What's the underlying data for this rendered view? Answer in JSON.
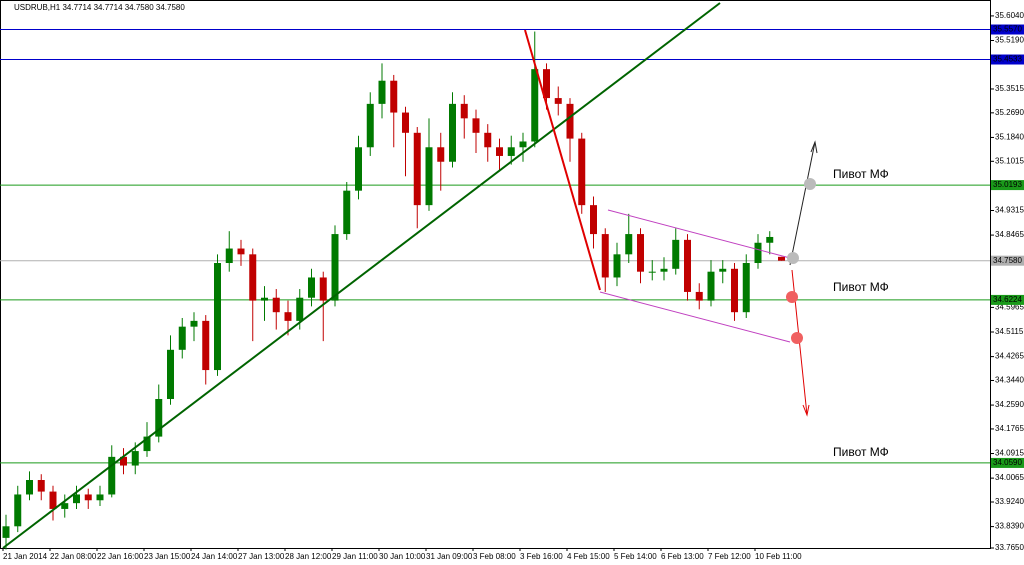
{
  "chart_data": {
    "type": "candlestick",
    "title": "USDRUB,H1  34.7714 34.7714 34.7580 34.7580",
    "categories": [
      "21 Jan 2014",
      null,
      null,
      null,
      "22 Jan 08:00",
      null,
      null,
      null,
      "22 Jan 16:00",
      null,
      null,
      null,
      "23 Jan 15:00",
      null,
      null,
      null,
      "24 Jan 14:00",
      null,
      null,
      null,
      "27 Jan 13:00",
      null,
      null,
      null,
      "28 Jan 12:00",
      null,
      null,
      null,
      "29 Jan 11:00",
      null,
      null,
      null,
      "30 Jan 10:00",
      null,
      null,
      null,
      "31 Jan 09:00",
      null,
      null,
      null,
      "3 Feb 08:00",
      null,
      null,
      null,
      "3 Feb 16:00",
      null,
      null,
      null,
      "4 Feb 15:00",
      null,
      null,
      null,
      "5 Feb 14:00",
      null,
      null,
      null,
      "6 Feb 13:00",
      null,
      null,
      null,
      "7 Feb 12:00",
      null,
      null,
      null,
      "10 Feb 11:00",
      null,
      null
    ],
    "open": [
      33.8,
      33.84,
      33.95,
      34.0,
      33.96,
      33.9,
      33.92,
      33.95,
      33.93,
      33.95,
      34.08,
      34.05,
      34.1,
      34.15,
      34.28,
      34.45,
      34.53,
      34.55,
      34.38,
      34.75,
      34.8,
      34.78,
      34.62,
      34.63,
      34.58,
      34.55,
      34.63,
      34.7,
      34.62,
      34.85,
      35.0,
      35.15,
      35.3,
      35.38,
      35.27,
      35.2,
      34.95,
      35.15,
      35.1,
      35.3,
      35.25,
      35.2,
      35.15,
      35.12,
      35.15,
      35.17,
      35.42,
      35.32,
      35.3,
      35.18,
      34.95,
      34.85,
      34.7,
      34.78,
      34.85,
      34.72,
      34.72,
      34.73,
      34.83,
      34.65,
      34.62,
      34.72,
      34.73,
      34.58,
      34.75,
      34.82,
      34.7714
    ],
    "high": [
      33.88,
      33.98,
      34.03,
      34.02,
      33.98,
      33.95,
      33.98,
      33.97,
      33.98,
      34.12,
      34.11,
      34.13,
      34.2,
      34.33,
      34.5,
      34.56,
      34.58,
      34.57,
      34.78,
      34.86,
      34.83,
      34.8,
      34.67,
      34.66,
      34.62,
      34.66,
      34.73,
      34.72,
      34.88,
      35.03,
      35.19,
      35.34,
      35.44,
      35.4,
      35.29,
      35.22,
      35.25,
      35.2,
      35.34,
      35.33,
      35.28,
      35.23,
      35.18,
      35.19,
      35.2,
      35.55,
      35.44,
      35.36,
      35.32,
      35.2,
      34.98,
      34.87,
      34.82,
      34.92,
      34.87,
      34.76,
      34.77,
      34.87,
      34.85,
      34.68,
      34.76,
      34.76,
      34.75,
      34.78,
      34.85,
      34.86,
      34.7714
    ],
    "low": [
      33.76,
      33.82,
      33.93,
      33.93,
      33.86,
      33.87,
      33.9,
      33.9,
      33.91,
      33.94,
      34.02,
      34.02,
      34.08,
      34.13,
      34.26,
      34.42,
      34.48,
      34.33,
      34.36,
      34.72,
      34.74,
      34.48,
      34.55,
      34.52,
      34.5,
      34.52,
      34.6,
      34.48,
      34.6,
      34.83,
      34.97,
      35.12,
      35.25,
      35.15,
      35.05,
      34.87,
      34.93,
      35.0,
      35.08,
      35.18,
      35.13,
      35.1,
      35.07,
      35.09,
      35.1,
      35.15,
      35.28,
      35.26,
      35.1,
      34.92,
      34.8,
      34.65,
      34.67,
      34.75,
      34.68,
      34.69,
      34.69,
      34.71,
      34.62,
      34.59,
      34.6,
      34.68,
      34.55,
      34.56,
      34.73,
      34.78,
      34.758
    ],
    "close": [
      33.84,
      33.95,
      34.0,
      33.96,
      33.9,
      33.92,
      33.95,
      33.93,
      33.95,
      34.08,
      34.05,
      34.1,
      34.15,
      34.28,
      34.45,
      34.53,
      34.55,
      34.38,
      34.75,
      34.8,
      34.78,
      34.62,
      34.63,
      34.58,
      34.55,
      34.63,
      34.7,
      34.62,
      34.85,
      35.0,
      35.15,
      35.3,
      35.38,
      35.27,
      35.2,
      34.95,
      35.15,
      35.1,
      35.3,
      35.25,
      35.2,
      35.15,
      35.12,
      35.15,
      35.17,
      35.42,
      35.32,
      35.3,
      35.18,
      34.95,
      34.85,
      34.7,
      34.78,
      34.85,
      34.72,
      34.72,
      34.73,
      34.83,
      34.65,
      34.62,
      34.72,
      34.73,
      34.58,
      34.75,
      34.82,
      34.84,
      34.758
    ],
    "up_color": "#007a00",
    "down_color": "#c00000",
    "ylim": [
      33.765,
      35.659
    ],
    "yticks": [
      {
        "value": 35.604,
        "label": "35.6040"
      },
      {
        "value": 35.519,
        "label": "35.5190"
      },
      {
        "value": 35.3515,
        "label": "35.3515"
      },
      {
        "value": 35.269,
        "label": "35.2690"
      },
      {
        "value": 35.184,
        "label": "35.1840"
      },
      {
        "value": 35.1015,
        "label": "35.1015"
      },
      {
        "value": 34.9315,
        "label": "34.9315"
      },
      {
        "value": 34.8465,
        "label": "34.8465"
      },
      {
        "value": 34.5965,
        "label": "34.5965"
      },
      {
        "value": 34.5115,
        "label": "34.5115"
      },
      {
        "value": 34.4265,
        "label": "34.4265"
      },
      {
        "value": 34.344,
        "label": "34.3440"
      },
      {
        "value": 34.259,
        "label": "34.2590"
      },
      {
        "value": 34.1765,
        "label": "34.1765"
      },
      {
        "value": 34.0915,
        "label": "34.0915"
      },
      {
        "value": 34.0065,
        "label": "34.0065"
      },
      {
        "value": 33.924,
        "label": "33.9240"
      },
      {
        "value": 33.839,
        "label": "33.8390"
      },
      {
        "value": 33.765,
        "label": "33.7650"
      }
    ],
    "levels": [
      {
        "value": 35.557,
        "label": "35.5570",
        "color": "#0000cc"
      },
      {
        "value": 35.4533,
        "label": "35.4533",
        "color": "#0000cc"
      },
      {
        "value": 35.0193,
        "label": "35.0193",
        "color": "#1a9a1a"
      },
      {
        "value": 34.758,
        "label": "34.7580",
        "color": "#b0b0b0"
      },
      {
        "value": 34.6224,
        "label": "34.6224",
        "color": "#1a9a1a"
      },
      {
        "value": 34.059,
        "label": "34.0590",
        "color": "#1a9a1a"
      }
    ],
    "annotations": [
      "Пивот МФ",
      "Пивот МФ",
      "Пивот МФ"
    ]
  }
}
